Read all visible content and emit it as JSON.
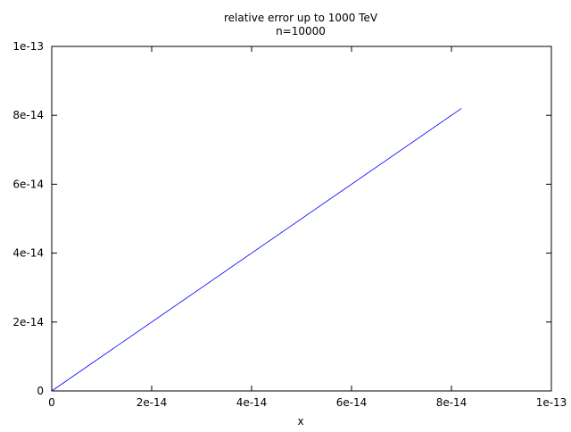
{
  "chart_data": {
    "type": "line",
    "title": "relative error up to 1000 TeV",
    "subtitle": "n=10000",
    "xlabel": "x",
    "ylabel": "",
    "xlim": [
      0,
      1e-13
    ],
    "ylim": [
      0,
      1e-13
    ],
    "x_ticks": [
      0,
      2e-14,
      4e-14,
      6e-14,
      8e-14,
      1e-13
    ],
    "x_tick_labels": [
      "0",
      "2e-14",
      "4e-14",
      "6e-14",
      "8e-14",
      "1e-13"
    ],
    "y_ticks": [
      0,
      2e-14,
      4e-14,
      6e-14,
      8e-14,
      1e-13
    ],
    "y_tick_labels": [
      "0",
      "2e-14",
      "4e-14",
      "6e-14",
      "8e-14",
      "1e-13"
    ],
    "grid": false,
    "series": [
      {
        "color": "#0000ff",
        "x": [
          0,
          8.2e-14
        ],
        "y": [
          0,
          8.2e-14
        ]
      }
    ]
  }
}
